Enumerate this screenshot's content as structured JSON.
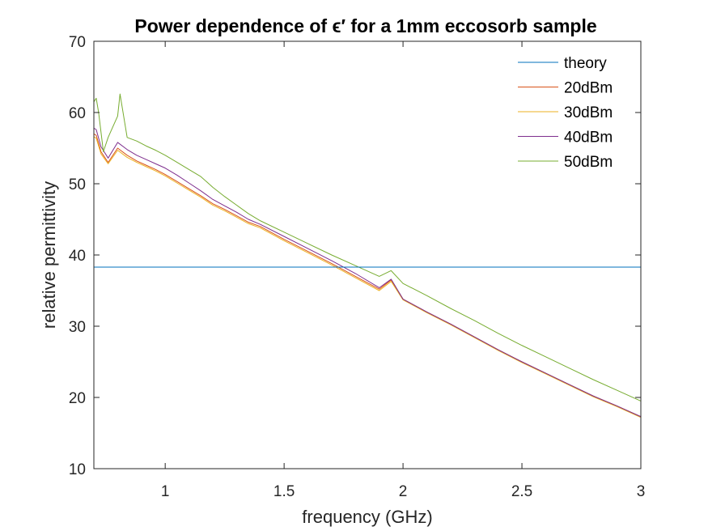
{
  "chart_data": {
    "type": "line",
    "title": "Power dependence of ϵ′ for a 1mm eccosorb sample",
    "xlabel": "frequency (GHz)",
    "ylabel": "relative permittivity",
    "xlim": [
      0.7,
      3.0
    ],
    "ylim": [
      10,
      70
    ],
    "xticks": [
      1,
      1.5,
      2,
      2.5,
      3
    ],
    "xtick_labels": [
      "1",
      "1.5",
      "2",
      "2.5",
      "3"
    ],
    "yticks": [
      10,
      20,
      30,
      40,
      50,
      60,
      70
    ],
    "ytick_labels": [
      "10",
      "20",
      "30",
      "40",
      "50",
      "60",
      "70"
    ],
    "grid": false,
    "legend_position": "top-right",
    "series": [
      {
        "name": "theory",
        "color": "#0072BD",
        "x": [
          0.7,
          3.0
        ],
        "y": [
          38.3,
          38.3
        ]
      },
      {
        "name": "20dBm",
        "color": "#D95319",
        "x": [
          0.7,
          0.71,
          0.73,
          0.76,
          0.8,
          0.84,
          0.88,
          0.92,
          0.96,
          1.0,
          1.05,
          1.1,
          1.15,
          1.2,
          1.25,
          1.3,
          1.35,
          1.4,
          1.5,
          1.6,
          1.7,
          1.8,
          1.9,
          1.95,
          2.0,
          2.1,
          2.2,
          2.3,
          2.4,
          2.5,
          2.6,
          2.7,
          2.8,
          2.9,
          3.0
        ],
        "y": [
          57.0,
          56.8,
          54.5,
          53.0,
          55.0,
          54.0,
          53.2,
          52.6,
          52.0,
          51.3,
          50.3,
          49.3,
          48.3,
          47.2,
          46.4,
          45.5,
          44.6,
          44.0,
          42.2,
          40.5,
          38.8,
          37.0,
          35.2,
          36.5,
          33.8,
          32.0,
          30.3,
          28.5,
          26.7,
          25.0,
          23.4,
          21.8,
          20.2,
          18.8,
          17.3
        ]
      },
      {
        "name": "30dBm",
        "color": "#EDB120",
        "x": [
          0.7,
          0.71,
          0.73,
          0.76,
          0.8,
          0.84,
          0.88,
          0.92,
          0.96,
          1.0,
          1.05,
          1.1,
          1.15,
          1.2,
          1.25,
          1.3,
          1.35,
          1.4,
          1.5,
          1.6,
          1.7,
          1.8,
          1.9,
          1.95,
          2.0,
          2.1,
          2.2,
          2.3,
          2.4,
          2.5,
          2.6,
          2.7,
          2.8,
          2.9,
          3.0
        ],
        "y": [
          56.6,
          56.4,
          54.2,
          52.8,
          54.7,
          53.7,
          53.0,
          52.4,
          51.8,
          51.1,
          50.1,
          49.1,
          48.1,
          47.0,
          46.2,
          45.3,
          44.4,
          43.8,
          42.0,
          40.3,
          38.6,
          36.8,
          35.0,
          36.3,
          33.7,
          31.9,
          30.2,
          28.4,
          26.6,
          24.9,
          23.3,
          21.7,
          20.1,
          18.7,
          17.2
        ]
      },
      {
        "name": "40dBm",
        "color": "#7E2F8E",
        "x": [
          0.7,
          0.71,
          0.73,
          0.76,
          0.8,
          0.84,
          0.88,
          0.92,
          0.96,
          1.0,
          1.05,
          1.1,
          1.15,
          1.2,
          1.25,
          1.3,
          1.35,
          1.4,
          1.5,
          1.6,
          1.7,
          1.8,
          1.9,
          1.95,
          2.0,
          2.1,
          2.2,
          2.3,
          2.4,
          2.5,
          2.6,
          2.7,
          2.8,
          2.9,
          3.0
        ],
        "y": [
          57.8,
          57.6,
          55.2,
          53.6,
          55.8,
          54.8,
          54.0,
          53.4,
          52.8,
          52.2,
          51.2,
          50.1,
          49.0,
          47.8,
          46.9,
          46.0,
          45.0,
          44.3,
          42.6,
          40.9,
          39.2,
          37.4,
          35.4,
          36.6,
          33.8,
          32.0,
          30.3,
          28.5,
          26.7,
          25.0,
          23.4,
          21.8,
          20.2,
          18.8,
          17.3
        ]
      },
      {
        "name": "50dBm",
        "color": "#77AC30",
        "x": [
          0.7,
          0.71,
          0.72,
          0.74,
          0.76,
          0.78,
          0.8,
          0.81,
          0.84,
          0.88,
          0.92,
          0.96,
          1.0,
          1.05,
          1.1,
          1.15,
          1.2,
          1.25,
          1.3,
          1.35,
          1.4,
          1.5,
          1.6,
          1.7,
          1.8,
          1.9,
          1.95,
          2.0,
          2.1,
          2.2,
          2.3,
          2.4,
          2.5,
          2.6,
          2.7,
          2.8,
          2.9,
          3.0
        ],
        "y": [
          61.5,
          62.0,
          60.0,
          54.5,
          56.5,
          58.0,
          59.5,
          62.6,
          56.5,
          56.0,
          55.3,
          54.7,
          54.0,
          53.0,
          52.0,
          51.0,
          49.5,
          48.2,
          47.0,
          45.8,
          44.8,
          43.2,
          41.6,
          40.0,
          38.5,
          37.0,
          37.8,
          36.0,
          34.3,
          32.5,
          30.8,
          29.0,
          27.3,
          25.7,
          24.1,
          22.5,
          21.0,
          19.5
        ]
      }
    ]
  }
}
